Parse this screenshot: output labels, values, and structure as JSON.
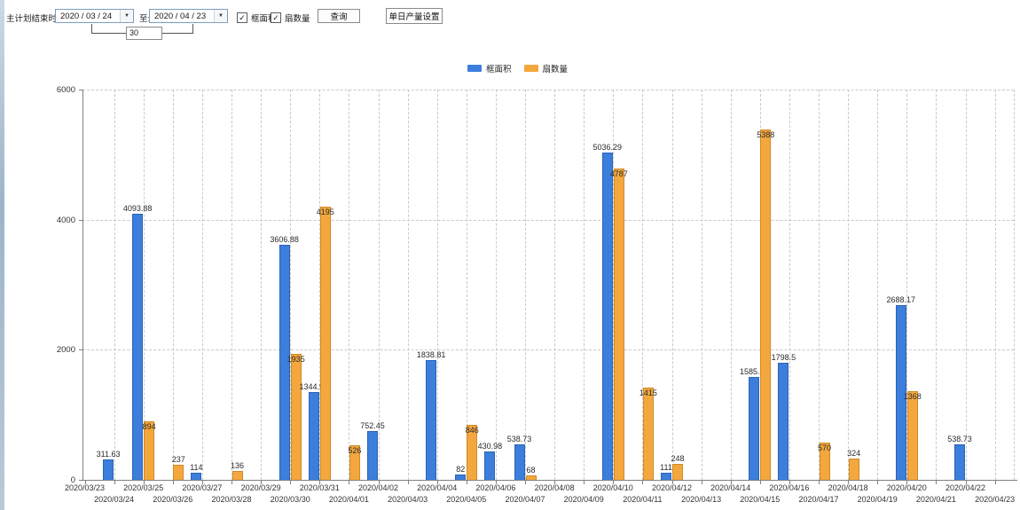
{
  "toolbar": {
    "label": "主计划结束时间:",
    "date_from": "2020 / 03 / 24",
    "to_label": "至:",
    "date_to": "2020 / 04 / 23",
    "interval_days": "30",
    "checkbox_area_label": "框面积",
    "checkbox_fan_label": "扇数量",
    "query_button": "查询",
    "daily_output_button": "单日产量设置"
  },
  "chart_data": {
    "type": "bar",
    "title": "",
    "xlabel": "",
    "ylabel": "",
    "ylim": [
      0,
      6000
    ],
    "yticks": [
      0,
      2000,
      4000,
      6000
    ],
    "grid": true,
    "legend_position": "top",
    "categories": [
      "2020/03/23",
      "2020/03/24",
      "2020/03/25",
      "2020/03/26",
      "2020/03/27",
      "2020/03/28",
      "2020/03/29",
      "2020/03/30",
      "2020/03/31",
      "2020/04/01",
      "2020/04/02",
      "2020/04/03",
      "2020/04/04",
      "2020/04/05",
      "2020/04/06",
      "2020/04/07",
      "2020/04/08",
      "2020/04/09",
      "2020/04/10",
      "2020/04/11",
      "2020/04/12",
      "2020/04/13",
      "2020/04/14",
      "2020/04/15",
      "2020/04/16",
      "2020/04/17",
      "2020/04/18",
      "2020/04/19",
      "2020/04/20",
      "2020/04/21",
      "2020/04/22",
      "2020/04/23"
    ],
    "series": [
      {
        "name": "框面积",
        "color": "#3c7edc",
        "values": [
          null,
          311.63,
          4093.88,
          null,
          114,
          null,
          null,
          3606.88,
          1344.95,
          null,
          752.45,
          null,
          1838.81,
          82,
          430.98,
          538.73,
          null,
          null,
          5036.29,
          null,
          111,
          null,
          null,
          1585.96,
          1798.5,
          null,
          null,
          null,
          2688.17,
          null,
          538.73,
          null
        ]
      },
      {
        "name": "扇数量",
        "color": "#f3a73d",
        "values": [
          null,
          null,
          894,
          237,
          null,
          136,
          null,
          1935,
          4195,
          526,
          null,
          null,
          null,
          846,
          null,
          68,
          null,
          null,
          4787,
          1415,
          248,
          null,
          null,
          5388,
          null,
          570,
          324,
          null,
          1368,
          null,
          null,
          null
        ]
      }
    ]
  }
}
